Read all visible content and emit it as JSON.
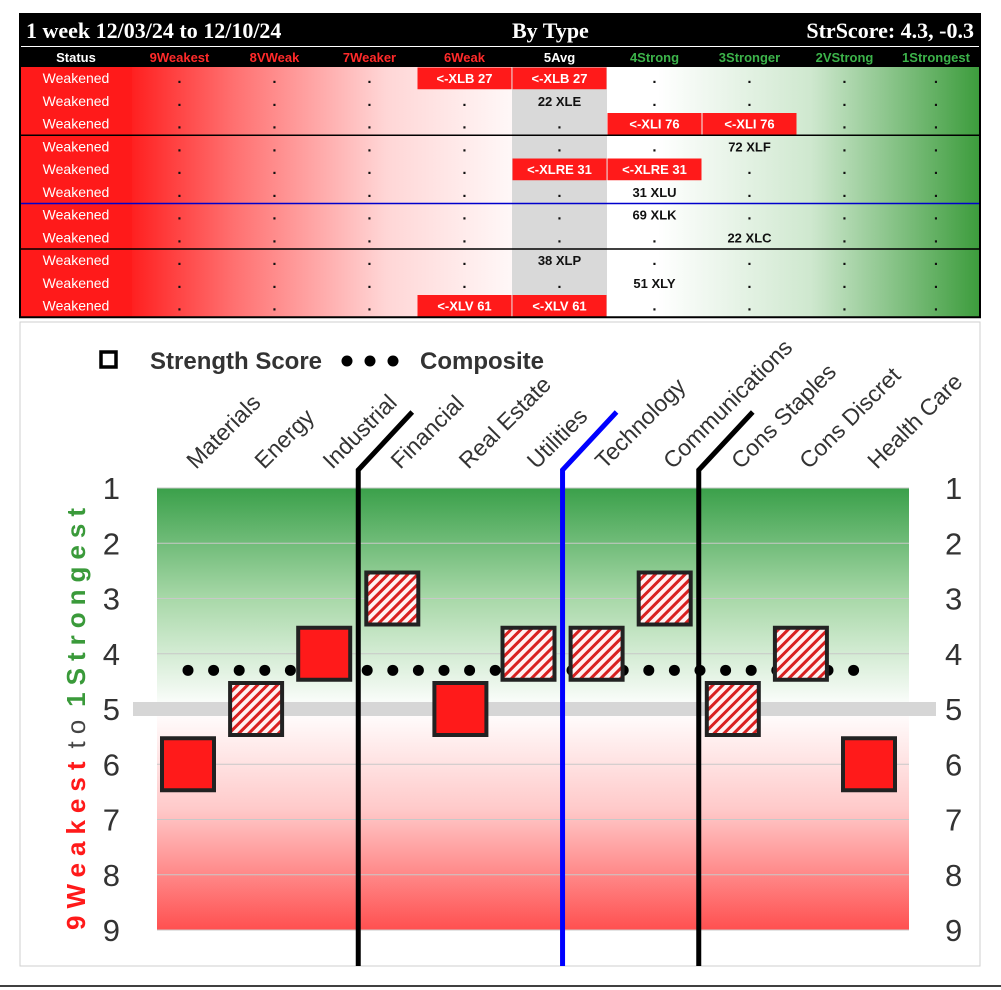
{
  "header": {
    "period": "1 week 12/03/24 to 12/10/24",
    "view": "By Type",
    "score": "StrScore: 4.3, -0.3"
  },
  "table": {
    "columns": [
      {
        "label": "Status",
        "color": "#ffffff"
      },
      {
        "label": "9Weakest",
        "color": "#ff2a2a"
      },
      {
        "label": "8VWeak",
        "color": "#ff2a2a"
      },
      {
        "label": "7Weaker",
        "color": "#ff2a2a"
      },
      {
        "label": "6Weak",
        "color": "#ff2a2a"
      },
      {
        "label": "5Avg",
        "color": "#ffffff"
      },
      {
        "label": "4Strong",
        "color": "#3cb34a"
      },
      {
        "label": "3Stronger",
        "color": "#3cb34a"
      },
      {
        "label": "2VStrong",
        "color": "#3cb34a"
      },
      {
        "label": "1Strongest",
        "color": "#3cb34a"
      }
    ],
    "rows": [
      {
        "status": "Weakened",
        "cells": [
          ".",
          ".",
          ".",
          "<-XLB 27",
          "<-XLB 27",
          ".",
          ".",
          ".",
          "."
        ],
        "hl": [
          4,
          5
        ]
      },
      {
        "status": "Weakened",
        "cells": [
          ".",
          ".",
          ".",
          ".",
          "22 XLE",
          ".",
          ".",
          ".",
          "."
        ],
        "hl": []
      },
      {
        "status": "Weakened",
        "cells": [
          ".",
          ".",
          ".",
          ".",
          ".",
          "<-XLI 76",
          "<-XLI 76",
          ".",
          "."
        ],
        "hl": [
          6,
          7
        ]
      },
      {
        "status": "Weakened",
        "cells": [
          ".",
          ".",
          ".",
          ".",
          ".",
          ".",
          "72 XLF",
          ".",
          "."
        ],
        "hl": []
      },
      {
        "status": "Weakened",
        "cells": [
          ".",
          ".",
          ".",
          ".",
          "<-XLRE 31",
          "<-XLRE 31",
          ".",
          ".",
          "."
        ],
        "hl": [
          5,
          6
        ]
      },
      {
        "status": "Weakened",
        "cells": [
          ".",
          ".",
          ".",
          ".",
          ".",
          "31 XLU",
          ".",
          ".",
          "."
        ],
        "hl": []
      },
      {
        "status": "Weakened",
        "cells": [
          ".",
          ".",
          ".",
          ".",
          ".",
          "69 XLK",
          ".",
          ".",
          "."
        ],
        "hl": []
      },
      {
        "status": "Weakened",
        "cells": [
          ".",
          ".",
          ".",
          ".",
          ".",
          ".",
          "22 XLC",
          ".",
          "."
        ],
        "hl": []
      },
      {
        "status": "Weakened",
        "cells": [
          ".",
          ".",
          ".",
          ".",
          "38 XLP",
          ".",
          ".",
          ".",
          "."
        ],
        "hl": []
      },
      {
        "status": "Weakened",
        "cells": [
          ".",
          ".",
          ".",
          ".",
          ".",
          "51 XLY",
          ".",
          ".",
          "."
        ],
        "hl": []
      },
      {
        "status": "Weakened",
        "cells": [
          ".",
          ".",
          ".",
          "<-XLV 61",
          "<-XLV 61",
          ".",
          ".",
          ".",
          "."
        ],
        "hl": [
          4,
          5
        ]
      }
    ]
  },
  "chart_data": {
    "type": "scatter",
    "legend": {
      "square_label": "Strength Score",
      "dots_label": "Composite",
      "placement": "top-left"
    },
    "y_label_weak": "9Weakest",
    "y_label_to": "to",
    "y_label_strong": "1Strongest",
    "ylim": [
      1,
      9
    ],
    "y_ticks": [
      "1",
      "2",
      "3",
      "4",
      "5",
      "6",
      "7",
      "8",
      "9"
    ],
    "categories": [
      "Materials",
      "Energy",
      "Industrial",
      "Financial",
      "Real Estate",
      "Utilities",
      "Technology",
      "Communications",
      "Cons Staples",
      "Cons Discret",
      "Health Care"
    ],
    "strength_score": [
      6,
      5,
      4,
      3,
      5,
      4,
      4,
      3,
      5,
      4,
      6
    ],
    "weakened": [
      false,
      true,
      false,
      true,
      false,
      true,
      true,
      true,
      true,
      true,
      false
    ],
    "composite": 4.3,
    "midline": 5,
    "separators": [
      {
        "after": "Industrial",
        "color": "#000000"
      },
      {
        "after": "Utilities",
        "color": "#0000ff"
      },
      {
        "after": "Communications",
        "color": "#000000"
      }
    ],
    "colors": {
      "square": "#ff1a1a",
      "strong": "#3a9a3a",
      "weak": "#ff1a1a"
    }
  }
}
